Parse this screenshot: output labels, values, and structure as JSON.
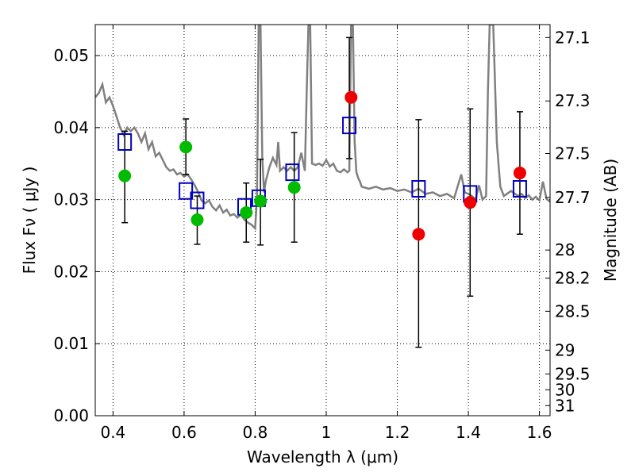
{
  "chart_data": {
    "type": "scatter",
    "xlabel": "Wavelength  λ (μm)",
    "ylabel": "Flux  Fν  ( μJy )",
    "y2label": "Magnitude (AB)",
    "xlim": [
      0.35,
      1.63
    ],
    "ylim": [
      0.0,
      0.0543
    ],
    "grid": true,
    "x_ticks": [
      0.4,
      0.6,
      0.8,
      1.0,
      1.2,
      1.4,
      1.6
    ],
    "x_tick_labels": [
      "0.4",
      "0.6",
      "0.8",
      "1",
      "1.2",
      "1.4",
      "1.6"
    ],
    "y_ticks": [
      0.0,
      0.01,
      0.02,
      0.03,
      0.04,
      0.05
    ],
    "y_tick_labels": [
      "0.00",
      "0.01",
      "0.02",
      "0.03",
      "0.04",
      "0.05"
    ],
    "y2_ticks": [
      {
        "label": "27.1",
        "flux": 0.0525
      },
      {
        "label": "27.3",
        "flux": 0.0437
      },
      {
        "label": "27.5",
        "flux": 0.0364
      },
      {
        "label": "27.7",
        "flux": 0.0303
      },
      {
        "label": "28",
        "flux": 0.023
      },
      {
        "label": "28.2",
        "flux": 0.0191
      },
      {
        "label": "28.5",
        "flux": 0.0145
      },
      {
        "label": "29",
        "flux": 0.0091
      },
      {
        "label": "29.5",
        "flux": 0.0058
      },
      {
        "label": "30",
        "flux": 0.0036
      },
      {
        "label": "31",
        "flux": 0.0014
      }
    ],
    "model_spectrum": {
      "color": "#808080",
      "x": [
        0.35,
        0.36,
        0.37,
        0.38,
        0.39,
        0.4,
        0.41,
        0.42,
        0.43,
        0.44,
        0.45,
        0.46,
        0.47,
        0.48,
        0.49,
        0.5,
        0.51,
        0.52,
        0.53,
        0.54,
        0.55,
        0.56,
        0.57,
        0.58,
        0.59,
        0.6,
        0.61,
        0.62,
        0.63,
        0.64,
        0.65,
        0.66,
        0.67,
        0.68,
        0.69,
        0.7,
        0.71,
        0.72,
        0.73,
        0.74,
        0.75,
        0.76,
        0.77,
        0.78,
        0.79,
        0.8,
        0.805,
        0.81,
        0.815,
        0.82,
        0.825,
        0.83,
        0.84,
        0.85,
        0.86,
        0.865,
        0.87,
        0.88,
        0.89,
        0.9,
        0.91,
        0.92,
        0.93,
        0.94,
        0.945,
        0.95,
        0.955,
        0.96,
        0.97,
        0.98,
        0.99,
        1.0,
        1.01,
        1.02,
        1.03,
        1.04,
        1.05,
        1.06,
        1.065,
        1.07,
        1.075,
        1.08,
        1.085,
        1.09,
        1.095,
        1.1,
        1.12,
        1.14,
        1.16,
        1.18,
        1.2,
        1.22,
        1.24,
        1.26,
        1.28,
        1.3,
        1.32,
        1.34,
        1.36,
        1.38,
        1.39,
        1.4,
        1.41,
        1.42,
        1.43,
        1.44,
        1.45,
        1.455,
        1.46,
        1.465,
        1.47,
        1.48,
        1.49,
        1.5,
        1.52,
        1.54,
        1.55,
        1.56,
        1.57,
        1.58,
        1.59,
        1.6,
        1.61,
        1.62,
        1.63
      ],
      "y": [
        0.0442,
        0.0448,
        0.046,
        0.0435,
        0.0442,
        0.043,
        0.0415,
        0.04,
        0.039,
        0.04,
        0.0395,
        0.04,
        0.0392,
        0.038,
        0.0392,
        0.037,
        0.038,
        0.036,
        0.0365,
        0.0355,
        0.0345,
        0.034,
        0.0342,
        0.0335,
        0.0337,
        0.0332,
        0.0335,
        0.0328,
        0.032,
        0.031,
        0.0298,
        0.0295,
        0.0299,
        0.029,
        0.0285,
        0.0292,
        0.0282,
        0.0286,
        0.0278,
        0.028,
        0.0275,
        0.0279,
        0.0272,
        0.0268,
        0.0265,
        0.026,
        0.03,
        0.0543,
        0.0543,
        0.036,
        0.031,
        0.0326,
        0.0345,
        0.0358,
        0.0348,
        0.038,
        0.034,
        0.0345,
        0.034,
        0.0345,
        0.034,
        0.0345,
        0.0365,
        0.034,
        0.045,
        0.0543,
        0.0543,
        0.035,
        0.0348,
        0.035,
        0.0347,
        0.0355,
        0.0346,
        0.035,
        0.034,
        0.0338,
        0.0342,
        0.0338,
        0.034,
        0.0543,
        0.0543,
        0.038,
        0.0338,
        0.033,
        0.0325,
        0.0318,
        0.0315,
        0.0318,
        0.0314,
        0.0316,
        0.0312,
        0.0314,
        0.031,
        0.0315,
        0.0308,
        0.031,
        0.0305,
        0.0308,
        0.0302,
        0.0335,
        0.031,
        0.0308,
        0.0305,
        0.03,
        0.032,
        0.03,
        0.0305,
        0.045,
        0.0543,
        0.0543,
        0.0543,
        0.038,
        0.0318,
        0.0305,
        0.0312,
        0.0305,
        0.0308,
        0.0302,
        0.0306,
        0.03,
        0.0304,
        0.0299,
        0.0325,
        0.0301,
        0.0297
      ]
    },
    "series": [
      {
        "marker": "open-square",
        "color": "#0000c0",
        "x": [
          0.433,
          0.605,
          0.637,
          0.77,
          0.81,
          0.905,
          1.065,
          1.26,
          1.405,
          1.545
        ],
        "y": [
          0.038,
          0.0312,
          0.0299,
          0.029,
          0.0302,
          0.0338,
          0.0403,
          0.0315,
          0.0308,
          0.0315
        ]
      },
      {
        "marker": "filled-circle",
        "color": "#00bb00",
        "x": [
          0.433,
          0.605,
          0.637,
          0.775,
          0.815,
          0.91
        ],
        "y": [
          0.0333,
          0.0373,
          0.0272,
          0.0282,
          0.0298,
          0.0317
        ]
      },
      {
        "marker": "filled-circle",
        "color": "#ee0000",
        "x": [
          1.07,
          1.26,
          1.405,
          1.545
        ],
        "y": [
          0.0442,
          0.0252,
          0.0296,
          0.0337
        ]
      }
    ],
    "error_bars": {
      "color": "#000000",
      "x": [
        0.433,
        0.605,
        0.637,
        0.775,
        0.815,
        0.91,
        1.065,
        1.26,
        1.405,
        1.545
      ],
      "low": [
        0.0268,
        0.0335,
        0.0238,
        0.0241,
        0.0237,
        0.0241,
        0.0357,
        0.0095,
        0.0166,
        0.0252
      ],
      "high": [
        0.0395,
        0.0412,
        0.0305,
        0.0323,
        0.0356,
        0.0393,
        0.0525,
        0.0411,
        0.0426,
        0.0422
      ]
    }
  }
}
